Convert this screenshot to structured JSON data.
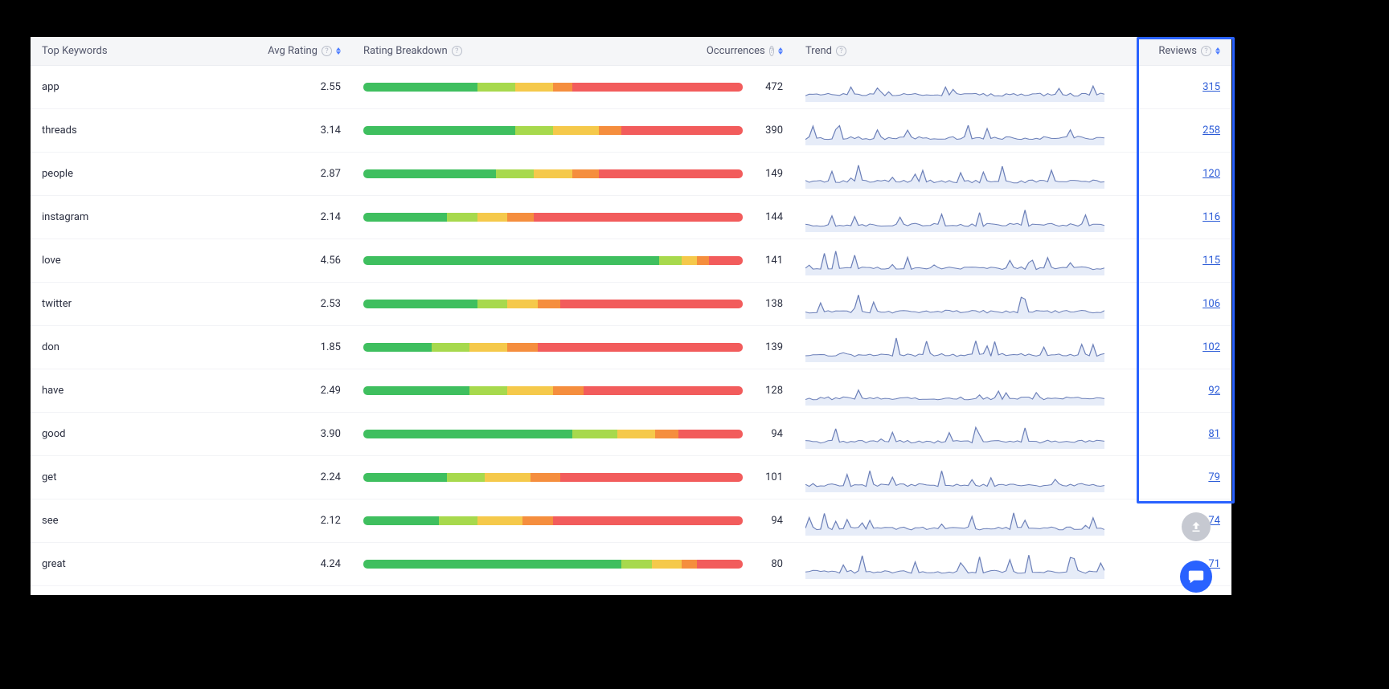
{
  "colors": {
    "seg_green": "#3fbf5f",
    "seg_lime": "#a7d94d",
    "seg_yellow": "#f5c94b",
    "seg_orange": "#f58e3e",
    "seg_red": "#f25c5c",
    "spark_stroke": "#6b7fb8",
    "spark_fill": "#e6ecf8",
    "link": "#2b5bd7",
    "header_bg": "#f5f6f8",
    "header_text": "#52566b",
    "body_text": "#2b2f40",
    "highlight_border": "#2962ff",
    "fab_scroll_bg": "#c6c9d1",
    "fab_chat_bg": "#2962ff"
  },
  "columns": {
    "keyword": {
      "label": "Top Keywords"
    },
    "rating": {
      "label": "Avg Rating"
    },
    "breakdown": {
      "label": "Rating Breakdown"
    },
    "occ": {
      "label": "Occurrences"
    },
    "trend": {
      "label": "Trend"
    },
    "reviews": {
      "label": "Reviews"
    }
  },
  "breakdown_segments": [
    "seg_green",
    "seg_lime",
    "seg_yellow",
    "seg_orange",
    "seg_red"
  ],
  "sparkline": {
    "points": 80,
    "height": 36,
    "seed_base": 17
  },
  "rows": [
    {
      "keyword": "app",
      "rating": "2.55",
      "occ": "472",
      "reviews": "315",
      "breakdown": [
        30,
        10,
        10,
        5,
        45
      ],
      "spark_amp": 0.3
    },
    {
      "keyword": "threads",
      "rating": "3.14",
      "occ": "390",
      "reviews": "258",
      "breakdown": [
        40,
        10,
        12,
        6,
        32
      ],
      "spark_amp": 0.45
    },
    {
      "keyword": "people",
      "rating": "2.87",
      "occ": "149",
      "reviews": "120",
      "breakdown": [
        35,
        10,
        10,
        7,
        38
      ],
      "spark_amp": 0.55
    },
    {
      "keyword": "instagram",
      "rating": "2.14",
      "occ": "144",
      "reviews": "116",
      "breakdown": [
        22,
        8,
        8,
        7,
        55
      ],
      "spark_amp": 0.5
    },
    {
      "keyword": "love",
      "rating": "4.56",
      "occ": "141",
      "reviews": "115",
      "breakdown": [
        78,
        6,
        4,
        3,
        9
      ],
      "spark_amp": 0.6
    },
    {
      "keyword": "twitter",
      "rating": "2.53",
      "occ": "138",
      "reviews": "106",
      "breakdown": [
        30,
        8,
        8,
        6,
        48
      ],
      "spark_amp": 0.55
    },
    {
      "keyword": "don",
      "rating": "1.85",
      "occ": "139",
      "reviews": "102",
      "breakdown": [
        18,
        10,
        10,
        8,
        54
      ],
      "spark_amp": 0.65
    },
    {
      "keyword": "have",
      "rating": "2.49",
      "occ": "128",
      "reviews": "92",
      "breakdown": [
        28,
        10,
        12,
        8,
        42
      ],
      "spark_amp": 0.35
    },
    {
      "keyword": "good",
      "rating": "3.90",
      "occ": "94",
      "reviews": "81",
      "breakdown": [
        55,
        12,
        10,
        6,
        17
      ],
      "spark_amp": 0.55
    },
    {
      "keyword": "get",
      "rating": "2.24",
      "occ": "101",
      "reviews": "79",
      "breakdown": [
        22,
        10,
        12,
        8,
        48
      ],
      "spark_amp": 0.6
    },
    {
      "keyword": "see",
      "rating": "2.12",
      "occ": "94",
      "reviews": "74",
      "breakdown": [
        20,
        10,
        12,
        8,
        50
      ],
      "spark_amp": 0.6
    },
    {
      "keyword": "great",
      "rating": "4.24",
      "occ": "80",
      "reviews": "71",
      "breakdown": [
        68,
        8,
        8,
        4,
        12
      ],
      "spark_amp": 0.55
    }
  ]
}
